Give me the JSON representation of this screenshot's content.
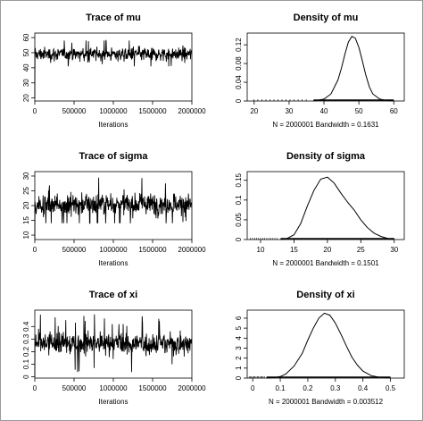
{
  "chart_data": [
    {
      "type": "line",
      "title": "Trace of mu",
      "xlabel": "Iterations",
      "ylabel": "",
      "x_ticks": [
        0,
        500000,
        1000000,
        1500000,
        2000000
      ],
      "y_ticks": [
        20,
        30,
        40,
        50,
        60
      ],
      "xlim": [
        0,
        2000000
      ],
      "ylim": [
        18,
        63
      ],
      "series": [
        {
          "center": 49,
          "spread": 3.2,
          "extremes": [
            41,
            58
          ],
          "start": 20,
          "total_iterations": 2000001
        }
      ]
    },
    {
      "type": "line",
      "title": "Density of mu",
      "xlabel": "N = 2000001   Bandwidth = 0.1631",
      "ylabel": "",
      "x_ticks": [
        20,
        30,
        40,
        50,
        60
      ],
      "y_ticks": [
        0.0,
        0.04,
        0.08,
        0.12
      ],
      "xlim": [
        18,
        63
      ],
      "ylim": [
        0,
        0.145
      ],
      "series": [
        {
          "x": [
            37,
            40,
            42,
            44,
            45,
            46,
            47,
            48,
            49,
            50,
            51,
            52,
            53,
            54,
            56,
            58,
            60
          ],
          "y": [
            0.0,
            0.004,
            0.015,
            0.045,
            0.07,
            0.1,
            0.126,
            0.138,
            0.134,
            0.114,
            0.085,
            0.055,
            0.03,
            0.015,
            0.004,
            0.001,
            0.0
          ]
        }
      ]
    },
    {
      "type": "line",
      "title": "Trace of sigma",
      "xlabel": "Iterations",
      "ylabel": "",
      "x_ticks": [
        0,
        500000,
        1000000,
        1500000,
        2000000
      ],
      "y_ticks": [
        10,
        15,
        20,
        25,
        30
      ],
      "xlim": [
        0,
        2000000
      ],
      "ylim": [
        8.5,
        31.5
      ],
      "series": [
        {
          "center": 20.5,
          "spread": 2.6,
          "extremes": [
            14,
            30
          ],
          "start": 8.5,
          "total_iterations": 2000001
        }
      ]
    },
    {
      "type": "line",
      "title": "Density of sigma",
      "xlabel": "N = 2000001   Bandwidth = 0.1501",
      "ylabel": "",
      "x_ticks": [
        10,
        15,
        20,
        25,
        30
      ],
      "y_ticks": [
        0.0,
        0.05,
        0.1,
        0.15
      ],
      "xlim": [
        8,
        31.5
      ],
      "ylim": [
        0,
        0.172
      ],
      "series": [
        {
          "x": [
            13,
            14,
            15,
            16,
            17,
            18,
            19,
            20,
            21,
            22,
            23,
            24,
            25,
            26,
            27,
            28,
            29,
            30
          ],
          "y": [
            0.0,
            0.003,
            0.012,
            0.04,
            0.085,
            0.125,
            0.153,
            0.158,
            0.143,
            0.118,
            0.095,
            0.075,
            0.05,
            0.03,
            0.016,
            0.008,
            0.003,
            0.0
          ]
        }
      ]
    },
    {
      "type": "line",
      "title": "Trace of xi",
      "xlabel": "Iterations",
      "ylabel": "",
      "x_ticks": [
        0,
        500000,
        1000000,
        1500000,
        2000000
      ],
      "y_ticks": [
        0.0,
        0.1,
        0.2,
        0.3,
        0.4
      ],
      "xlim": [
        0,
        2000000
      ],
      "ylim": [
        -0.01,
        0.53
      ],
      "series": [
        {
          "center": 0.265,
          "spread": 0.065,
          "extremes": [
            0.03,
            0.5
          ],
          "start": 0.0,
          "total_iterations": 2000001
        }
      ]
    },
    {
      "type": "line",
      "title": "Density of xi",
      "xlabel": "N = 2000001   Bandwidth = 0.003512",
      "ylabel": "",
      "x_ticks": [
        0.0,
        0.1,
        0.2,
        0.3,
        0.4,
        0.5
      ],
      "y_ticks": [
        0,
        1,
        2,
        3,
        4,
        5,
        6
      ],
      "xlim": [
        -0.02,
        0.55
      ],
      "ylim": [
        0,
        6.8
      ],
      "series": [
        {
          "x": [
            0.05,
            0.08,
            0.1,
            0.12,
            0.15,
            0.18,
            0.2,
            0.22,
            0.24,
            0.26,
            0.28,
            0.3,
            0.32,
            0.34,
            0.36,
            0.38,
            0.4,
            0.43,
            0.46,
            0.5
          ],
          "y": [
            0.0,
            0.05,
            0.15,
            0.4,
            1.2,
            2.5,
            3.8,
            5.0,
            6.0,
            6.5,
            6.3,
            5.5,
            4.4,
            3.2,
            2.1,
            1.3,
            0.7,
            0.25,
            0.08,
            0.0
          ]
        }
      ]
    }
  ]
}
